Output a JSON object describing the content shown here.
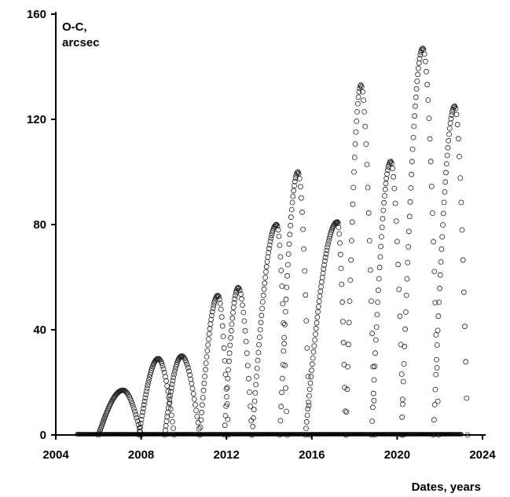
{
  "chart_data": {
    "type": "scatter",
    "title": "",
    "ylabel_lines": [
      "O-C,",
      "arcsec"
    ],
    "xlabel": "Dates, years",
    "xlim": [
      2004,
      2024
    ],
    "ylim": [
      0,
      160
    ],
    "x_ticks": [
      2004,
      2008,
      2012,
      2016,
      2020,
      2024
    ],
    "y_ticks": [
      0,
      40,
      80,
      120,
      160
    ],
    "grid": false,
    "legend": "none",
    "marker": "open-circle",
    "arches": [
      {
        "start": 2006.0,
        "peak": 2007.15,
        "end": 2008.0,
        "height": 17
      },
      {
        "start": 2007.9,
        "peak": 2008.8,
        "end": 2009.55,
        "height": 29
      },
      {
        "start": 2009.1,
        "peak": 2009.9,
        "end": 2010.75,
        "height": 30
      },
      {
        "start": 2010.75,
        "peak": 2011.6,
        "end": 2012.1,
        "height": 53
      },
      {
        "start": 2011.9,
        "peak": 2012.55,
        "end": 2013.2,
        "height": 56
      },
      {
        "start": 2013.2,
        "peak": 2014.35,
        "end": 2014.85,
        "height": 80
      },
      {
        "start": 2014.5,
        "peak": 2015.35,
        "end": 2015.9,
        "height": 100
      },
      {
        "start": 2015.7,
        "peak": 2017.2,
        "end": 2017.6,
        "height": 81
      },
      {
        "start": 2017.6,
        "peak": 2018.3,
        "end": 2018.95,
        "height": 133
      },
      {
        "start": 2018.8,
        "peak": 2019.7,
        "end": 2020.3,
        "height": 104
      },
      {
        "start": 2020.2,
        "peak": 2021.2,
        "end": 2021.95,
        "height": 147
      },
      {
        "start": 2021.7,
        "peak": 2022.7,
        "end": 2023.3,
        "height": 125
      }
    ],
    "baseline": {
      "x_start": 2005.0,
      "x_end": 2023.0,
      "y": 0
    }
  }
}
